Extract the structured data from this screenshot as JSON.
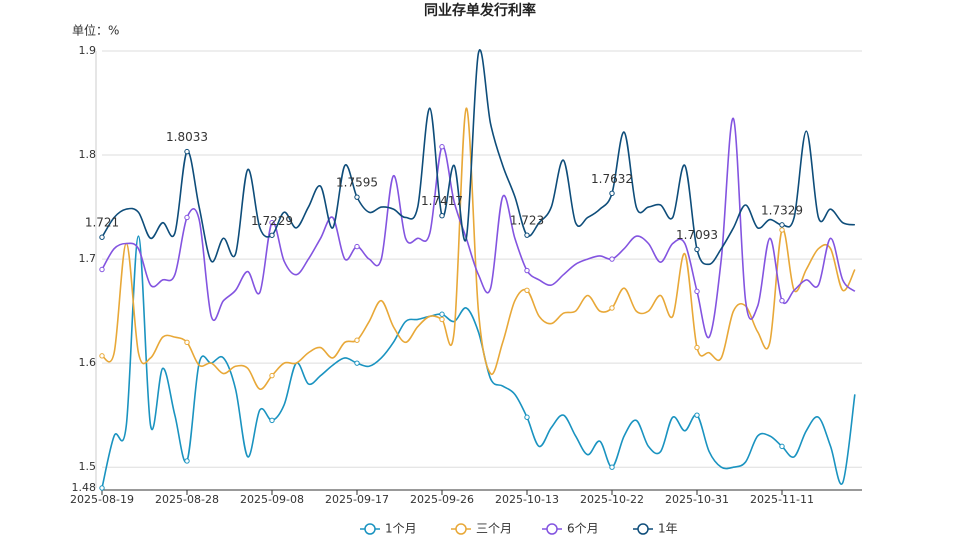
{
  "chart_data": {
    "type": "line",
    "title": "同业存单发行利率",
    "unit_label": "单位：%",
    "categories": [
      "2025-08-19",
      null,
      null,
      null,
      null,
      null,
      null,
      "2025-08-28",
      null,
      null,
      null,
      null,
      null,
      null,
      "2025-09-08",
      null,
      null,
      null,
      null,
      null,
      null,
      "2025-09-17",
      null,
      null,
      null,
      null,
      null,
      null,
      "2025-09-26",
      null,
      null,
      null,
      null,
      null,
      null,
      "2025-10-13",
      null,
      null,
      null,
      null,
      null,
      null,
      "2025-10-22",
      null,
      null,
      null,
      null,
      null,
      null,
      "2025-10-31",
      null,
      null,
      null,
      null,
      null,
      null,
      "2025-11-11",
      null,
      null,
      null,
      null,
      null,
      null
    ],
    "ylim": [
      1.48,
      1.9
    ],
    "yticks": [
      1.48,
      1.5,
      1.6,
      1.7,
      1.8,
      1.9
    ],
    "grid": true,
    "legend": "bottom",
    "series": [
      {
        "name": "1个月",
        "color": "#1a93c0",
        "values": [
          1.48,
          1.53,
          1.54,
          1.722,
          1.54,
          1.595,
          1.55,
          1.506,
          1.6,
          1.6,
          1.605,
          1.575,
          1.51,
          1.555,
          1.545,
          1.56,
          1.6,
          1.58,
          1.588,
          1.598,
          1.605,
          1.6,
          1.597,
          1.605,
          1.62,
          1.64,
          1.642,
          1.645,
          1.647,
          1.64,
          1.653,
          1.63,
          1.585,
          1.578,
          1.57,
          1.548,
          1.52,
          1.538,
          1.55,
          1.53,
          1.512,
          1.525,
          1.5,
          1.53,
          1.545,
          1.52,
          1.515,
          1.548,
          1.535,
          1.55,
          1.515,
          1.5,
          1.5,
          1.505,
          1.53,
          1.53,
          1.52,
          1.51,
          1.535,
          1.548,
          1.52,
          1.485,
          1.57
        ]
      },
      {
        "name": "三个月",
        "color": "#e8a838",
        "values": [
          1.607,
          1.61,
          1.715,
          1.61,
          1.605,
          1.625,
          1.625,
          1.62,
          1.598,
          1.6,
          1.59,
          1.597,
          1.595,
          1.575,
          1.588,
          1.6,
          1.6,
          1.61,
          1.615,
          1.605,
          1.62,
          1.622,
          1.64,
          1.66,
          1.635,
          1.62,
          1.635,
          1.645,
          1.642,
          1.63,
          1.845,
          1.65,
          1.59,
          1.62,
          1.66,
          1.67,
          1.645,
          1.638,
          1.648,
          1.65,
          1.665,
          1.65,
          1.653,
          1.672,
          1.65,
          1.65,
          1.665,
          1.645,
          1.705,
          1.615,
          1.61,
          1.605,
          1.65,
          1.655,
          1.63,
          1.62,
          1.728,
          1.67,
          1.69,
          1.71,
          1.71,
          1.67,
          1.69
        ]
      },
      {
        "name": "6个月",
        "color": "#8354e0",
        "values": [
          1.69,
          1.71,
          1.715,
          1.71,
          1.675,
          1.68,
          1.685,
          1.74,
          1.738,
          1.645,
          1.66,
          1.67,
          1.688,
          1.668,
          1.735,
          1.698,
          1.685,
          1.7,
          1.72,
          1.74,
          1.7,
          1.712,
          1.7,
          1.7,
          1.78,
          1.72,
          1.72,
          1.725,
          1.808,
          1.755,
          1.72,
          1.685,
          1.672,
          1.76,
          1.72,
          1.689,
          1.68,
          1.675,
          1.685,
          1.695,
          1.7,
          1.703,
          1.7,
          1.71,
          1.722,
          1.715,
          1.697,
          1.715,
          1.715,
          1.669,
          1.625,
          1.7,
          1.835,
          1.66,
          1.655,
          1.72,
          1.66,
          1.67,
          1.68,
          1.675,
          1.72,
          1.68,
          1.669
        ]
      },
      {
        "name": "1年",
        "color": "#0e4d7a",
        "show_labels": true,
        "values": [
          1.721,
          1.74,
          1.748,
          1.745,
          1.72,
          1.735,
          1.725,
          1.8033,
          1.75,
          1.698,
          1.72,
          1.705,
          1.786,
          1.73,
          1.7229,
          1.745,
          1.73,
          1.75,
          1.77,
          1.73,
          1.79,
          1.7595,
          1.745,
          1.75,
          1.748,
          1.74,
          1.75,
          1.845,
          1.7417,
          1.79,
          1.72,
          1.898,
          1.83,
          1.79,
          1.76,
          1.723,
          1.735,
          1.75,
          1.795,
          1.735,
          1.74,
          1.748,
          1.7632,
          1.822,
          1.75,
          1.75,
          1.752,
          1.74,
          1.79,
          1.7093,
          1.695,
          1.71,
          1.73,
          1.752,
          1.73,
          1.738,
          1.7329,
          1.74,
          1.823,
          1.74,
          1.748,
          1.735,
          1.733
        ]
      }
    ]
  }
}
